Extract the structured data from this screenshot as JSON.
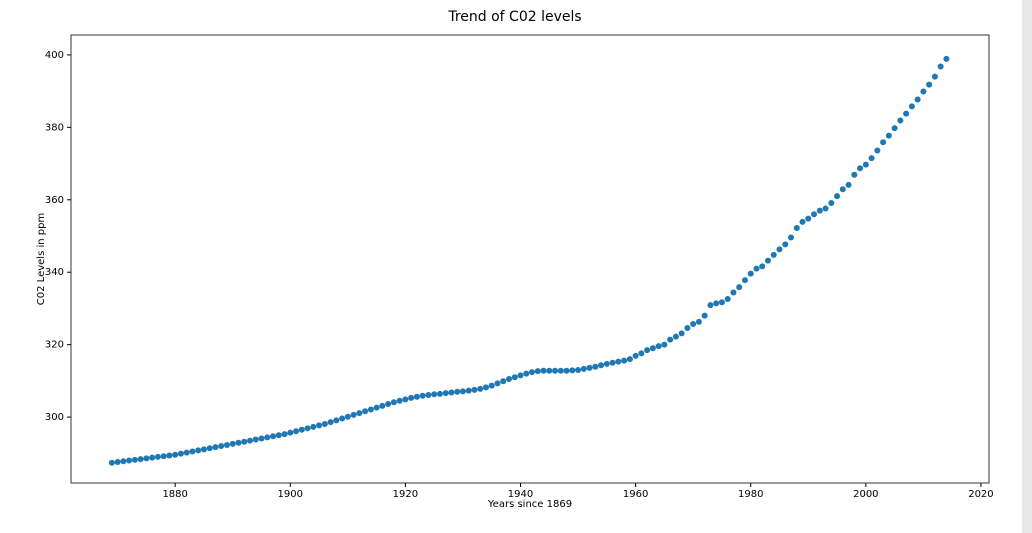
{
  "chart_data": {
    "type": "scatter",
    "title": "Trend of C02 levels",
    "xlabel": "Years since 1869",
    "ylabel": "C02 Levels in ppm",
    "color": "#1f77b4",
    "x": [
      1869,
      1870,
      1871,
      1872,
      1873,
      1874,
      1875,
      1876,
      1877,
      1878,
      1879,
      1880,
      1881,
      1882,
      1883,
      1884,
      1885,
      1886,
      1887,
      1888,
      1889,
      1890,
      1891,
      1892,
      1893,
      1894,
      1895,
      1896,
      1897,
      1898,
      1899,
      1900,
      1901,
      1902,
      1903,
      1904,
      1905,
      1906,
      1907,
      1908,
      1909,
      1910,
      1911,
      1912,
      1913,
      1914,
      1915,
      1916,
      1917,
      1918,
      1919,
      1920,
      1921,
      1922,
      1923,
      1924,
      1925,
      1926,
      1927,
      1928,
      1929,
      1930,
      1931,
      1932,
      1933,
      1934,
      1935,
      1936,
      1937,
      1938,
      1939,
      1940,
      1941,
      1942,
      1943,
      1944,
      1945,
      1946,
      1947,
      1948,
      1949,
      1950,
      1951,
      1952,
      1953,
      1954,
      1955,
      1956,
      1957,
      1958,
      1959,
      1960,
      1961,
      1962,
      1963,
      1964,
      1965,
      1966,
      1967,
      1968,
      1969,
      1970,
      1971,
      1972,
      1973,
      1974,
      1975,
      1976,
      1977,
      1978,
      1979,
      1980,
      1981,
      1982,
      1983,
      1984,
      1985,
      1986,
      1987,
      1988,
      1989,
      1990,
      1991,
      1992,
      1993,
      1994,
      1995,
      1996,
      1997,
      1998,
      1999,
      2000,
      2001,
      2002,
      2003,
      2004,
      2005,
      2006,
      2007,
      2008,
      2009,
      2010,
      2011,
      2012,
      2013,
      2014
    ],
    "values": [
      287.4,
      287.6,
      287.8,
      288.0,
      288.2,
      288.4,
      288.6,
      288.8,
      289.0,
      289.2,
      289.4,
      289.6,
      289.9,
      290.2,
      290.5,
      290.8,
      291.1,
      291.4,
      291.7,
      292.0,
      292.3,
      292.6,
      292.9,
      293.2,
      293.5,
      293.8,
      294.1,
      294.4,
      294.7,
      295.0,
      295.3,
      295.7,
      296.1,
      296.5,
      296.9,
      297.3,
      297.7,
      298.1,
      298.6,
      299.1,
      299.6,
      300.1,
      300.6,
      301.1,
      301.6,
      302.1,
      302.6,
      303.1,
      303.6,
      304.1,
      304.5,
      304.9,
      305.3,
      305.6,
      305.9,
      306.1,
      306.3,
      306.4,
      306.6,
      306.8,
      307.0,
      307.1,
      307.3,
      307.5,
      307.8,
      308.2,
      308.7,
      309.3,
      309.9,
      310.5,
      311.0,
      311.5,
      312.0,
      312.4,
      312.7,
      312.8,
      312.8,
      312.8,
      312.8,
      312.8,
      312.9,
      313.0,
      313.3,
      313.6,
      313.9,
      314.3,
      314.7,
      315.0,
      315.3,
      315.6,
      316.0,
      316.9,
      317.6,
      318.5,
      319.0,
      319.6,
      320.0,
      321.4,
      322.2,
      323.1,
      324.6,
      325.7,
      326.3,
      328.0,
      330.9,
      331.4,
      331.7,
      332.6,
      334.4,
      335.9,
      337.8,
      339.6,
      341.0,
      341.6,
      343.2,
      344.8,
      346.3,
      347.7,
      349.6,
      352.2,
      353.9,
      354.8,
      356.0,
      357.0,
      357.6,
      359.1,
      361.0,
      362.9,
      364.1,
      366.9,
      368.7,
      369.7,
      371.5,
      373.6,
      375.9,
      377.7,
      379.8,
      381.9,
      383.8,
      385.8,
      387.7,
      389.9,
      391.8,
      394.0,
      396.8,
      398.9
    ],
    "xlim": [
      1861.9,
      2021.4
    ],
    "ylim": [
      281.8,
      405.5
    ],
    "xticks": [
      1880,
      1900,
      1920,
      1940,
      1960,
      1980,
      2000,
      2020
    ],
    "yticks": [
      300,
      320,
      340,
      360,
      380,
      400
    ]
  }
}
